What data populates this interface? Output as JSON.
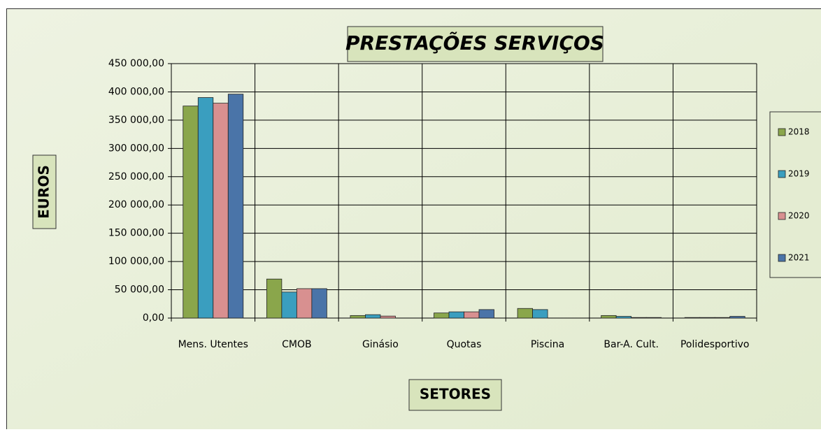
{
  "chart_data": {
    "type": "bar",
    "title": "PRESTAÇÕES SERVIÇOS",
    "y_label": "EUROS",
    "x_label": "SETORES",
    "categories": [
      "Mens. Utentes",
      "CMOB",
      "Ginásio",
      "Quotas",
      "Piscina",
      "Bar-A. Cult.",
      "Polidesportivo"
    ],
    "series": [
      {
        "name": "2018",
        "color": "#8aa64b",
        "values": [
          375000,
          69000,
          4500,
          9000,
          17000,
          4500,
          1000
        ]
      },
      {
        "name": "2019",
        "color": "#3a9ebf",
        "values": [
          390000,
          46000,
          6000,
          11000,
          15000,
          3000,
          1000
        ]
      },
      {
        "name": "2020",
        "color": "#d89090",
        "values": [
          380000,
          52000,
          3500,
          11000,
          0,
          1000,
          1000
        ]
      },
      {
        "name": "2021",
        "color": "#4a74a8",
        "values": [
          396000,
          52000,
          0,
          15000,
          0,
          1000,
          3000
        ]
      }
    ],
    "ylim": [
      0,
      450000
    ],
    "yticks": [
      {
        "value": 0,
        "label": "0,00"
      },
      {
        "value": 50000,
        "label": "50 000,00"
      },
      {
        "value": 100000,
        "label": "100 000,00"
      },
      {
        "value": 150000,
        "label": "150 000,00"
      },
      {
        "value": 200000,
        "label": "200 000,00"
      },
      {
        "value": 250000,
        "label": "250 000,00"
      },
      {
        "value": 300000,
        "label": "300 000,00"
      },
      {
        "value": 350000,
        "label": "350 000,00"
      },
      {
        "value": 400000,
        "label": "400 000,00"
      },
      {
        "value": 450000,
        "label": "450 000,00"
      }
    ],
    "grid": true,
    "legend": "right"
  }
}
